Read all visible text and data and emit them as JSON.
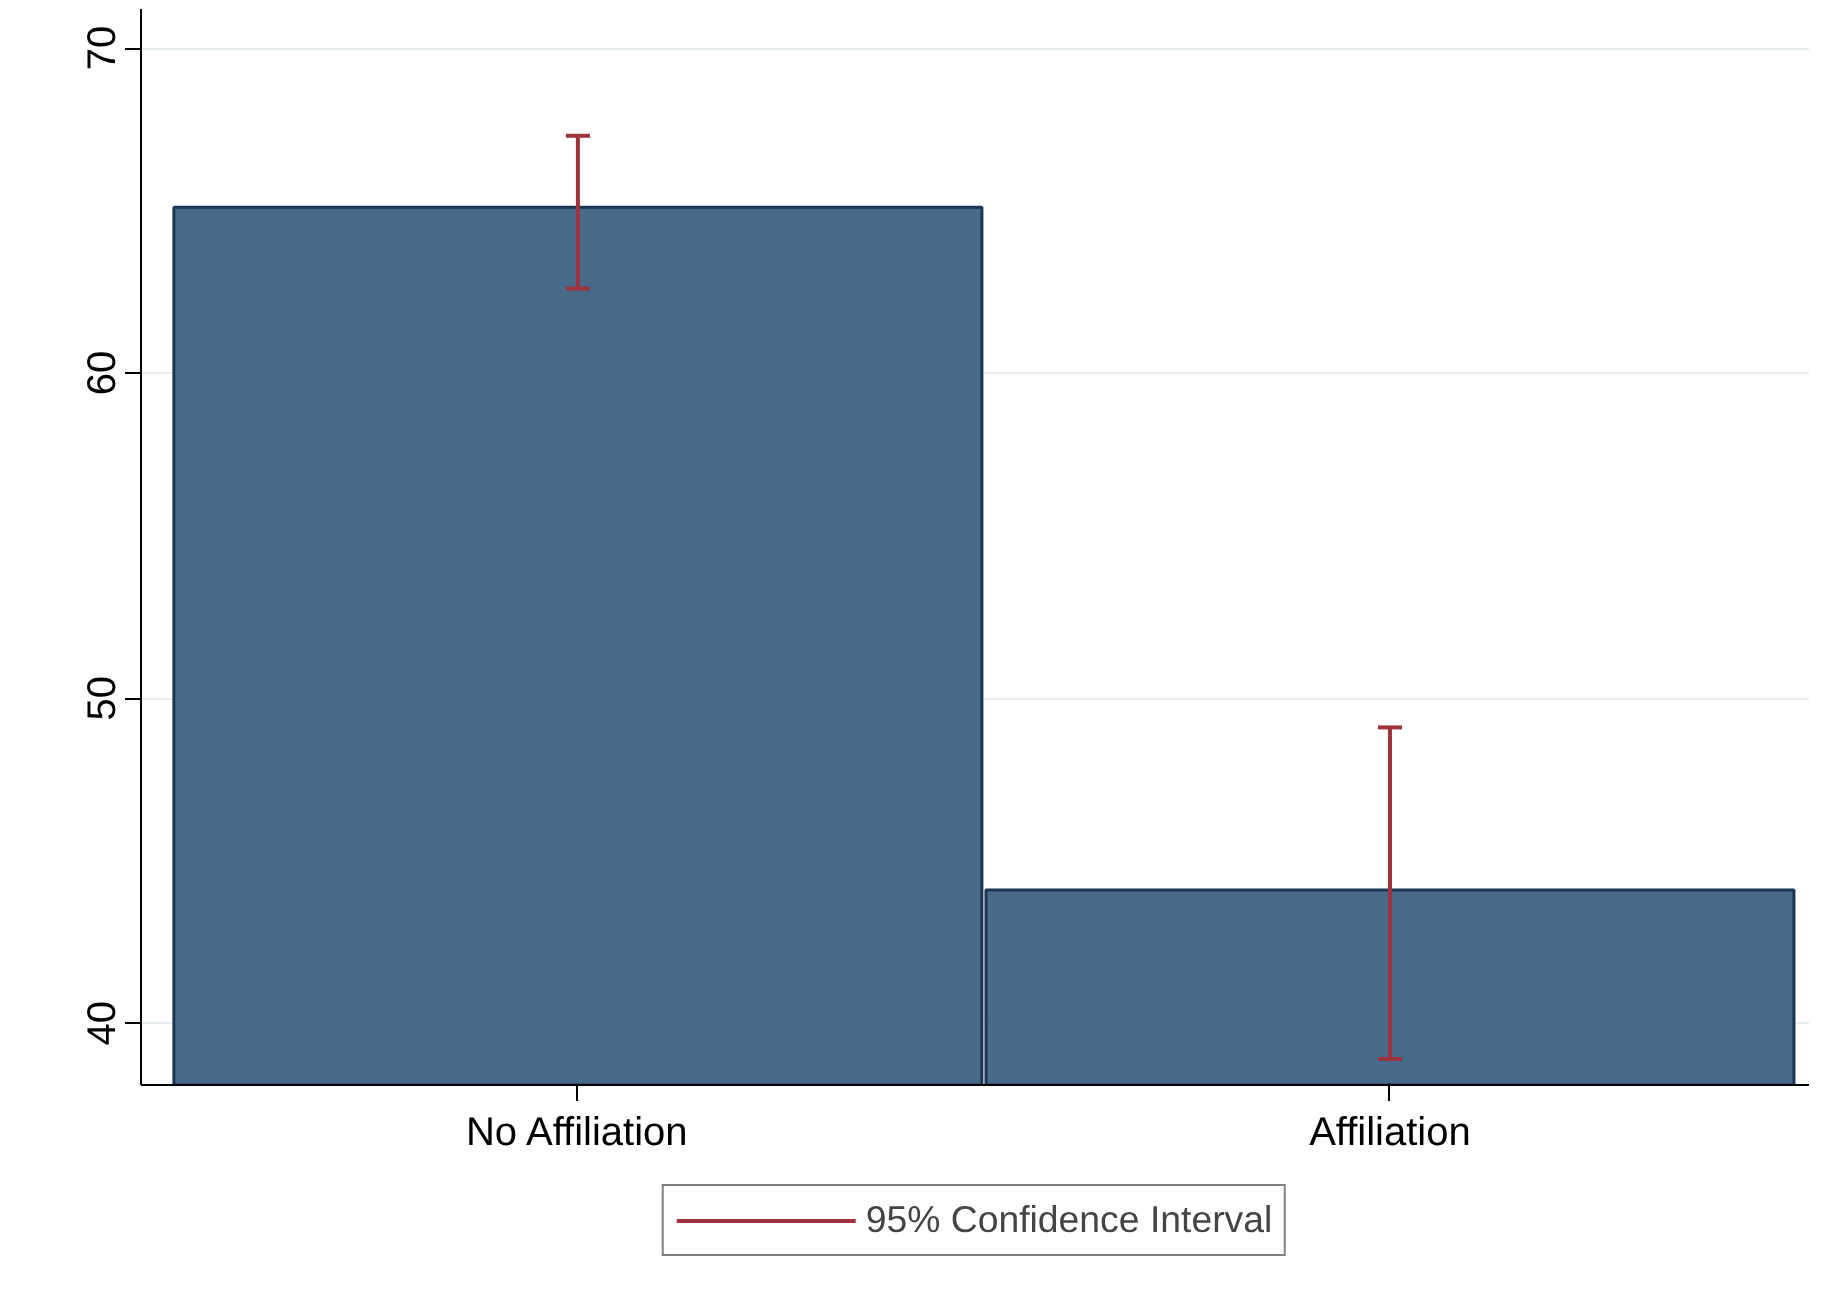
{
  "chart_data": {
    "type": "bar",
    "categories": [
      "No Affiliation",
      "Affiliation"
    ],
    "series": [
      {
        "name": "95% Confidence Interval",
        "color": "#476a8a",
        "values": [
          65.1,
          44.1
        ],
        "errors": [
          [
            62.6,
            67.3
          ],
          [
            38.9,
            49.1
          ]
        ]
      }
    ],
    "ylim": [
      38.1,
      71.2
    ],
    "yticks": [
      40,
      50,
      60,
      70
    ],
    "grid": "y",
    "legend": "bottom"
  }
}
